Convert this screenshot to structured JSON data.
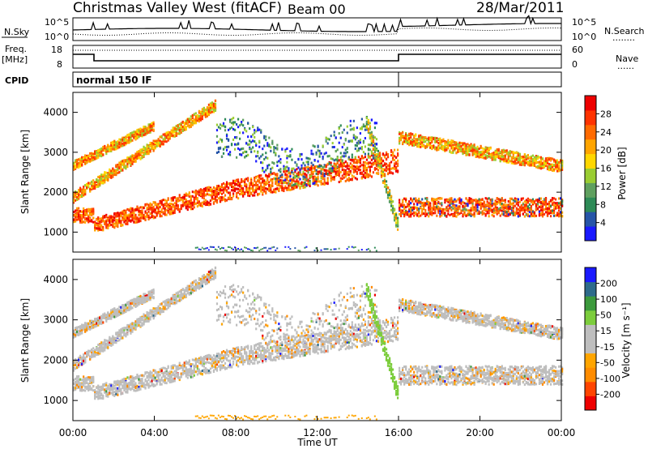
{
  "header": {
    "title": "Christmas Valley West (fitACF)",
    "beam": "Beam 00",
    "date": "28/Mar/2011"
  },
  "noise_panel": {
    "left_label": "N.Sky",
    "right_label": "N.Search",
    "left_ticks": [
      "10^5",
      "10^0"
    ],
    "right_ticks": [
      "10^5",
      "10^0"
    ],
    "right_legend": "........"
  },
  "freq_panel": {
    "left_label_1": "Freq.",
    "left_label_2": "[MHz]",
    "left_ticks": [
      "18",
      "8"
    ],
    "right_label": "Nave",
    "right_ticks": [
      "60",
      "0"
    ],
    "right_legend": "......"
  },
  "cpid": {
    "label": "CPID",
    "text": "normal 150 IF"
  },
  "colors": {
    "power": [
      "#1a1aff",
      "#2655a8",
      "#2e8b57",
      "#5fa05f",
      "#9acd32",
      "#ffd700",
      "#ffa500",
      "#ff6a00",
      "#ff3300",
      "#ee0000"
    ],
    "velocity": [
      "#ee0000",
      "#ff4500",
      "#ff8c00",
      "#ffa500",
      "#bebebe",
      "#bebebe",
      "#7ccd3c",
      "#3c9a3c",
      "#2e6b8b",
      "#1a1aff"
    ]
  },
  "chart_data": [
    {
      "type": "heatmap",
      "name": "power",
      "ylabel": "Slant Range [km]",
      "yticks": [
        "1000",
        "2000",
        "3000",
        "4000"
      ],
      "ylim": [
        500,
        4500
      ],
      "colorbar_label": "Power [dB]",
      "colorbar_ticks": [
        "4",
        "8",
        "12",
        "16",
        "20",
        "24",
        "28"
      ],
      "colorbar_range": [
        0,
        32
      ]
    },
    {
      "type": "heatmap",
      "name": "velocity",
      "ylabel": "Slant Range [km]",
      "yticks": [
        "1000",
        "2000",
        "3000",
        "4000"
      ],
      "ylim": [
        500,
        4500
      ],
      "colorbar_label": "Velocity [m s⁻¹]",
      "colorbar_ticks": [
        "200",
        "100",
        "50",
        "15",
        "-15",
        "-50",
        "-100",
        "-200"
      ]
    }
  ],
  "xaxis": {
    "label": "Time UT",
    "ticks": [
      "00:00",
      "04:00",
      "08:00",
      "12:00",
      "16:00",
      "20:00",
      "00:00"
    ],
    "range_hours": [
      0,
      24
    ]
  }
}
